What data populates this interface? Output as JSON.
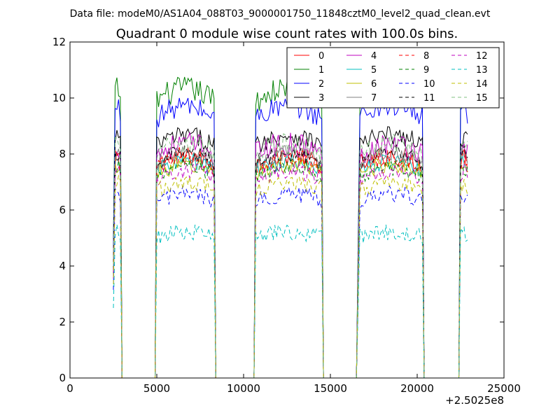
{
  "header": {
    "datafile": "Data file: modeM0/AS1A04_088T03_9000001750_11848cztM0_level2_quad_clean.evt"
  },
  "chart_data": {
    "type": "line",
    "title": "Quadrant 0 module wise count rates with 100.0s bins.",
    "xlabel": "",
    "ylabel": "",
    "x_offset_label": "+2.5025e8",
    "xlim": [
      0,
      25000
    ],
    "ylim": [
      0,
      12
    ],
    "xticks": [
      0,
      5000,
      10000,
      15000,
      20000,
      25000
    ],
    "yticks": [
      0,
      2,
      4,
      6,
      8,
      10,
      12
    ],
    "legend": {
      "placement": "top-right",
      "columns": 4,
      "entries": [
        "0",
        "1",
        "2",
        "3",
        "4",
        "5",
        "6",
        "7",
        "8",
        "9",
        "10",
        "11",
        "12",
        "13",
        "14",
        "15"
      ]
    },
    "segments": [
      {
        "start": 2500,
        "end": 2950
      },
      {
        "start": 4950,
        "end": 8350
      },
      {
        "start": 10650,
        "end": 14550
      },
      {
        "start": 16600,
        "end": 20350
      },
      {
        "start": 22450,
        "end": 22950
      }
    ],
    "gaps_value": 0,
    "bin_seconds": 100,
    "series": [
      {
        "name": "0",
        "color": "#ff0000",
        "style": "solid",
        "mean": 7.6,
        "noise": 0.35
      },
      {
        "name": "1",
        "color": "#008000",
        "style": "solid",
        "mean": 9.9,
        "noise": 0.45
      },
      {
        "name": "2",
        "color": "#0000ff",
        "style": "solid",
        "mean": 9.3,
        "noise": 0.4
      },
      {
        "name": "3",
        "color": "#000000",
        "style": "solid",
        "mean": 8.3,
        "noise": 0.35
      },
      {
        "name": "4",
        "color": "#bf00bf",
        "style": "solid",
        "mean": 8.0,
        "noise": 0.45
      },
      {
        "name": "5",
        "color": "#00bfbf",
        "style": "solid",
        "mean": 7.4,
        "noise": 0.3
      },
      {
        "name": "6",
        "color": "#bfbf00",
        "style": "solid",
        "mean": 7.3,
        "noise": 0.3
      },
      {
        "name": "7",
        "color": "#808080",
        "style": "solid",
        "mean": 7.7,
        "noise": 0.3
      },
      {
        "name": "8",
        "color": "#ff0000",
        "style": "dashed",
        "mean": 7.5,
        "noise": 0.3
      },
      {
        "name": "9",
        "color": "#008000",
        "style": "dashed",
        "mean": 7.2,
        "noise": 0.3
      },
      {
        "name": "10",
        "color": "#0000ff",
        "style": "dashed",
        "mean": 6.3,
        "noise": 0.3
      },
      {
        "name": "11",
        "color": "#000000",
        "style": "dashed",
        "mean": 7.7,
        "noise": 0.3
      },
      {
        "name": "12",
        "color": "#bf00bf",
        "style": "dashed",
        "mean": 7.1,
        "noise": 0.3
      },
      {
        "name": "13",
        "color": "#00bfbf",
        "style": "dashed",
        "mean": 5.0,
        "noise": 0.3
      },
      {
        "name": "14",
        "color": "#bfbf00",
        "style": "dashed",
        "mean": 6.7,
        "noise": 0.3
      },
      {
        "name": "15",
        "color": "#80c080",
        "style": "dashed",
        "mean": 8.0,
        "noise": 0.4
      }
    ]
  }
}
